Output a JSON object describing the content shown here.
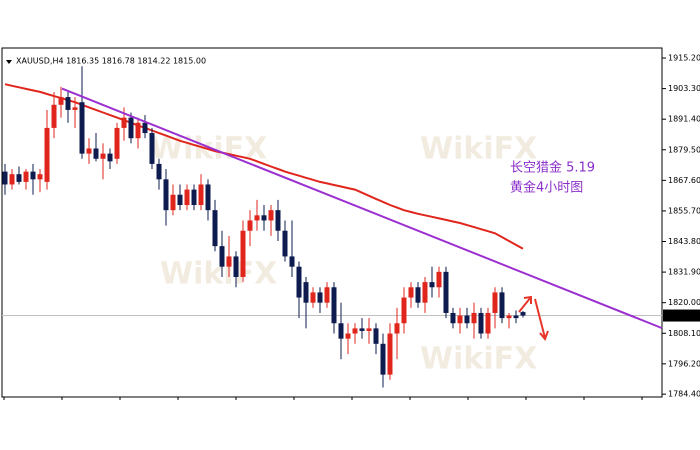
{
  "chart_data": {
    "type": "candlestick",
    "header": "XAUUSD,H4  1816.35 1816.78 1814.22 1815.00",
    "annotations": [
      "长空猎金  5.19",
      "黄金4小时图"
    ],
    "watermark": "WikiFX",
    "up_color": "#e0261c",
    "down_color": "#0d1b4f",
    "x": [
      0,
      1,
      2,
      3,
      4,
      5,
      6,
      7,
      8,
      9,
      10,
      11,
      12,
      13,
      14,
      15,
      16,
      17,
      18,
      19,
      20,
      21,
      22,
      23,
      24,
      25,
      26,
      27,
      28,
      29,
      30,
      31,
      32,
      33,
      34,
      35,
      36,
      37,
      38,
      39,
      40,
      41,
      42,
      43,
      44,
      45,
      46,
      47,
      48,
      49,
      50,
      51,
      52,
      53,
      54,
      55,
      56,
      57,
      58,
      59,
      60,
      61,
      62,
      63,
      64,
      65,
      66,
      67,
      68,
      69,
      70,
      71,
      72,
      73,
      74
    ],
    "open": [
      1871,
      1866,
      1870,
      1867,
      1871,
      1868,
      1867,
      1888,
      1897,
      1900,
      1895,
      1898,
      1878,
      1880,
      1876,
      1878,
      1876,
      1888,
      1892,
      1884,
      1890,
      1886,
      1874,
      1868,
      1856,
      1862,
      1858,
      1864,
      1858,
      1866,
      1856,
      1842,
      1834,
      1838,
      1830,
      1848,
      1852,
      1854,
      1852,
      1856,
      1848,
      1838,
      1834,
      1828,
      1820,
      1824,
      1820,
      1826,
      1812,
      1806,
      1808,
      1810,
      1809,
      1810,
      1804,
      1792,
      1808,
      1812,
      1822,
      1826,
      1820,
      1828,
      1826,
      1832,
      1816,
      1812,
      1815,
      1812,
      1816,
      1808,
      1816,
      1824,
      1814,
      1815,
      1816.35
    ],
    "high": [
      1874,
      1872,
      1873,
      1872,
      1874,
      1872,
      1895,
      1902,
      1904,
      1902,
      1900,
      1912,
      1884,
      1886,
      1882,
      1880,
      1890,
      1896,
      1894,
      1892,
      1893,
      1888,
      1876,
      1872,
      1866,
      1866,
      1866,
      1866,
      1870,
      1868,
      1860,
      1848,
      1846,
      1840,
      1852,
      1856,
      1860,
      1858,
      1858,
      1860,
      1852,
      1852,
      1836,
      1830,
      1826,
      1826,
      1828,
      1828,
      1820,
      1812,
      1812,
      1814,
      1814,
      1812,
      1808,
      1812,
      1818,
      1826,
      1828,
      1828,
      1830,
      1834,
      1834,
      1834,
      1818,
      1818,
      1818,
      1820,
      1818,
      1818,
      1826,
      1826,
      1816,
      1817,
      1816.78
    ],
    "low": [
      1862,
      1864,
      1866,
      1864,
      1862,
      1863,
      1864,
      1884,
      1892,
      1890,
      1888,
      1876,
      1874,
      1875,
      1868,
      1872,
      1874,
      1883,
      1882,
      1880,
      1884,
      1872,
      1864,
      1850,
      1854,
      1856,
      1856,
      1856,
      1856,
      1852,
      1840,
      1830,
      1830,
      1826,
      1828,
      1842,
      1848,
      1848,
      1846,
      1844,
      1836,
      1830,
      1814,
      1810,
      1818,
      1816,
      1818,
      1808,
      1798,
      1800,
      1804,
      1806,
      1804,
      1800,
      1787,
      1790,
      1798,
      1808,
      1818,
      1818,
      1816,
      1822,
      1822,
      1814,
      1810,
      1808,
      1810,
      1806,
      1806,
      1806,
      1810,
      1812,
      1810,
      1812,
      1814.22
    ],
    "close": [
      1866,
      1870,
      1867,
      1871,
      1868,
      1870,
      1888,
      1897,
      1900,
      1895,
      1896,
      1878,
      1880,
      1876,
      1878,
      1875,
      1888,
      1892,
      1884,
      1890,
      1886,
      1874,
      1868,
      1856,
      1862,
      1858,
      1864,
      1858,
      1866,
      1856,
      1842,
      1834,
      1838,
      1830,
      1848,
      1852,
      1854,
      1852,
      1856,
      1848,
      1838,
      1834,
      1822,
      1820,
      1824,
      1820,
      1826,
      1812,
      1806,
      1808,
      1810,
      1809,
      1810,
      1804,
      1792,
      1808,
      1812,
      1822,
      1826,
      1820,
      1828,
      1826,
      1832,
      1816,
      1812,
      1815,
      1812,
      1816,
      1808,
      1816,
      1824,
      1814,
      1815,
      1814,
      1815.0
    ],
    "moving_average": {
      "color": "#e0261c",
      "values": [
        1905,
        1904.4,
        1903.8,
        1903.2,
        1902.6,
        1902,
        1901.2,
        1900.4,
        1899.6,
        1898.8,
        1898,
        1897,
        1896,
        1895,
        1894,
        1893,
        1892,
        1891,
        1890,
        1889,
        1888,
        1887,
        1886,
        1885,
        1884,
        1883,
        1882.2,
        1881.4,
        1880.6,
        1879.8,
        1879,
        1878.4,
        1877.8,
        1877.2,
        1876.6,
        1876,
        1875,
        1874,
        1873,
        1872,
        1871,
        1870.2,
        1869.4,
        1868.6,
        1867.8,
        1867,
        1866.4,
        1865.8,
        1865.2,
        1864.6,
        1864,
        1862.8,
        1861.6,
        1860.4,
        1859.2,
        1858,
        1857,
        1856,
        1855.3,
        1854.6,
        1854,
        1853.4,
        1852.8,
        1852.2,
        1851.6,
        1851,
        1850.2,
        1849.4,
        1848.6,
        1847.8,
        1847,
        1845.5,
        1844,
        1842.5,
        1841
      ]
    },
    "trendline": {
      "color": "#9b30d0",
      "x": [
        8.14,
        93.86
      ],
      "values": [
        1903.3,
        1810.1
      ]
    },
    "current_price": {
      "value": 1815.0,
      "label": "1815.00"
    },
    "xlim": [
      -0.43,
      93.86
    ],
    "ylim": [
      1783.3,
      1919.1
    ],
    "yticks": [
      {
        "value": 1915.2,
        "label": "1915.20"
      },
      {
        "value": 1903.3,
        "label": "1903.30"
      },
      {
        "value": 1891.4,
        "label": "1891.40"
      },
      {
        "value": 1879.5,
        "label": "1879.50"
      },
      {
        "value": 1867.6,
        "label": "1867.60"
      },
      {
        "value": 1855.7,
        "label": "1855.70"
      },
      {
        "value": 1843.8,
        "label": "1843.80"
      },
      {
        "value": 1831.9,
        "label": "1831.90"
      },
      {
        "value": 1820.0,
        "label": "1820.00"
      },
      {
        "value": 1808.1,
        "label": "1808.10"
      },
      {
        "value": 1796.2,
        "label": "1796.20"
      },
      {
        "value": 1784.4,
        "label": "1784.40"
      }
    ]
  }
}
